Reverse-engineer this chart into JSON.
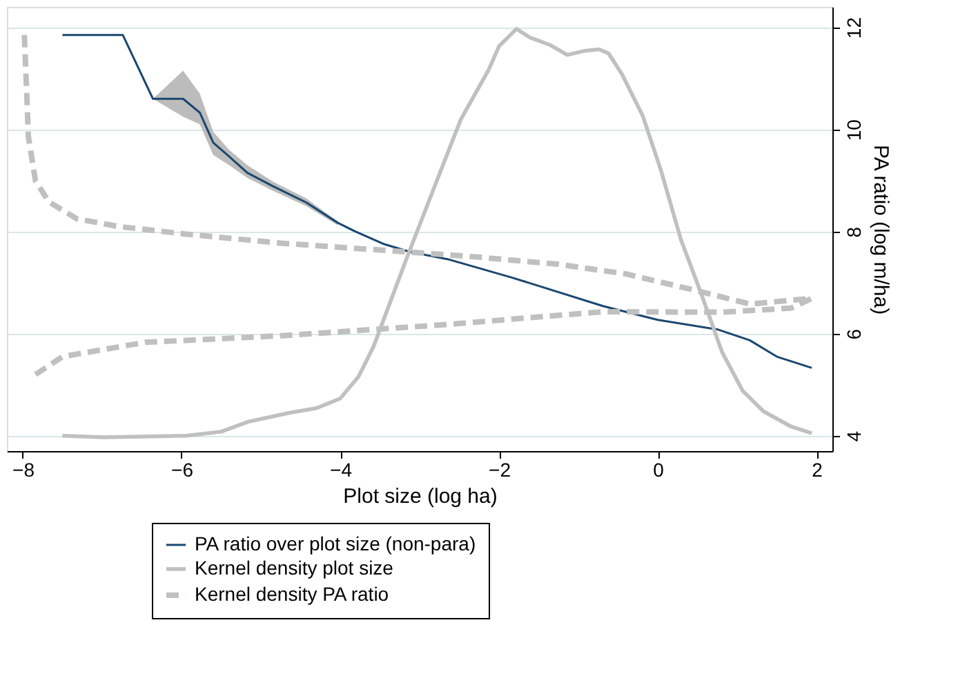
{
  "chart_data": {
    "type": "line",
    "xlabel": "Plot size (log ha)",
    "ylabel": "PA ratio (log m/ha)",
    "xlim": [
      -8.2,
      2.2
    ],
    "xticks": [
      -8,
      -6,
      -4,
      -2,
      0,
      2
    ],
    "ylim": [
      3.7,
      12.4
    ],
    "yticks": [
      4,
      6,
      8,
      10,
      12
    ],
    "grid": "y",
    "legend": "bottom",
    "marker": "none",
    "series": [
      {
        "name": "PA ratio over plot size (non-para)",
        "color": "#1a476f",
        "line_style": "solid",
        "x": [
          -7.5,
          -6.74,
          -6.36,
          -5.98,
          -5.77,
          -5.6,
          -5.4,
          -5.17,
          -4.85,
          -4.43,
          -4.03,
          -3.81,
          -3.46,
          -3.12,
          -2.65,
          -1.84,
          -0.69,
          0.0,
          0.76,
          1.16,
          1.5,
          1.94
        ],
        "values": [
          11.85,
          11.85,
          10.6,
          10.6,
          10.33,
          9.74,
          9.47,
          9.15,
          8.89,
          8.57,
          8.17,
          8.0,
          7.76,
          7.6,
          7.46,
          7.1,
          6.54,
          6.27,
          6.08,
          5.87,
          5.55,
          5.33
        ],
        "lower": [
          null,
          null,
          10.6,
          10.25,
          10.1,
          9.5,
          9.3,
          9.05,
          8.8,
          8.5,
          8.12,
          null,
          null,
          null,
          null,
          null,
          null,
          null,
          null,
          null,
          null,
          null
        ],
        "upper": [
          null,
          null,
          10.6,
          11.15,
          10.7,
          9.95,
          9.6,
          9.3,
          8.98,
          8.65,
          8.2,
          null,
          null,
          null,
          null,
          null,
          null,
          null,
          null,
          null,
          null,
          null
        ]
      },
      {
        "name": "Kernel density plot size",
        "color": "#c0c0c0",
        "line_style": "solid",
        "x": [
          -7.5,
          -6.98,
          -5.94,
          -5.5,
          -5.17,
          -4.64,
          -4.3,
          -4.0,
          -3.77,
          -3.58,
          -3.17,
          -2.82,
          -2.48,
          -2.13,
          -2.0,
          -1.78,
          -1.61,
          -1.35,
          -1.14,
          -0.92,
          -0.74,
          -0.62,
          -0.45,
          -0.19,
          0.04,
          0.29,
          0.55,
          0.81,
          1.07,
          1.33,
          1.68,
          1.94
        ],
        "values": [
          4.0,
          3.97,
          4.0,
          4.08,
          4.27,
          4.45,
          4.54,
          4.73,
          5.16,
          5.75,
          7.45,
          8.85,
          10.2,
          11.17,
          11.63,
          11.97,
          11.8,
          11.65,
          11.46,
          11.54,
          11.57,
          11.49,
          11.08,
          10.27,
          9.2,
          7.85,
          6.77,
          5.64,
          4.88,
          4.48,
          4.18,
          4.05
        ]
      },
      {
        "name": "Kernel density PA ratio",
        "color": "#c0c0c0",
        "line_style": "dashed",
        "x": [
          -7.84,
          -7.5,
          -6.46,
          -4.73,
          -2.65,
          -0.69,
          0.81,
          1.68,
          1.94,
          1.16,
          0.47,
          -0.4,
          -1.26,
          -2.42,
          -3.52,
          -4.73,
          -5.94,
          -6.8,
          -7.32,
          -7.67,
          -7.84,
          -7.93,
          -7.95,
          -7.98
        ],
        "values": [
          5.2,
          5.55,
          5.83,
          5.96,
          6.18,
          6.43,
          6.42,
          6.5,
          6.69,
          6.58,
          6.85,
          7.17,
          7.36,
          7.52,
          7.64,
          7.77,
          7.95,
          8.1,
          8.25,
          8.58,
          8.99,
          9.87,
          10.7,
          11.85
        ]
      }
    ]
  }
}
